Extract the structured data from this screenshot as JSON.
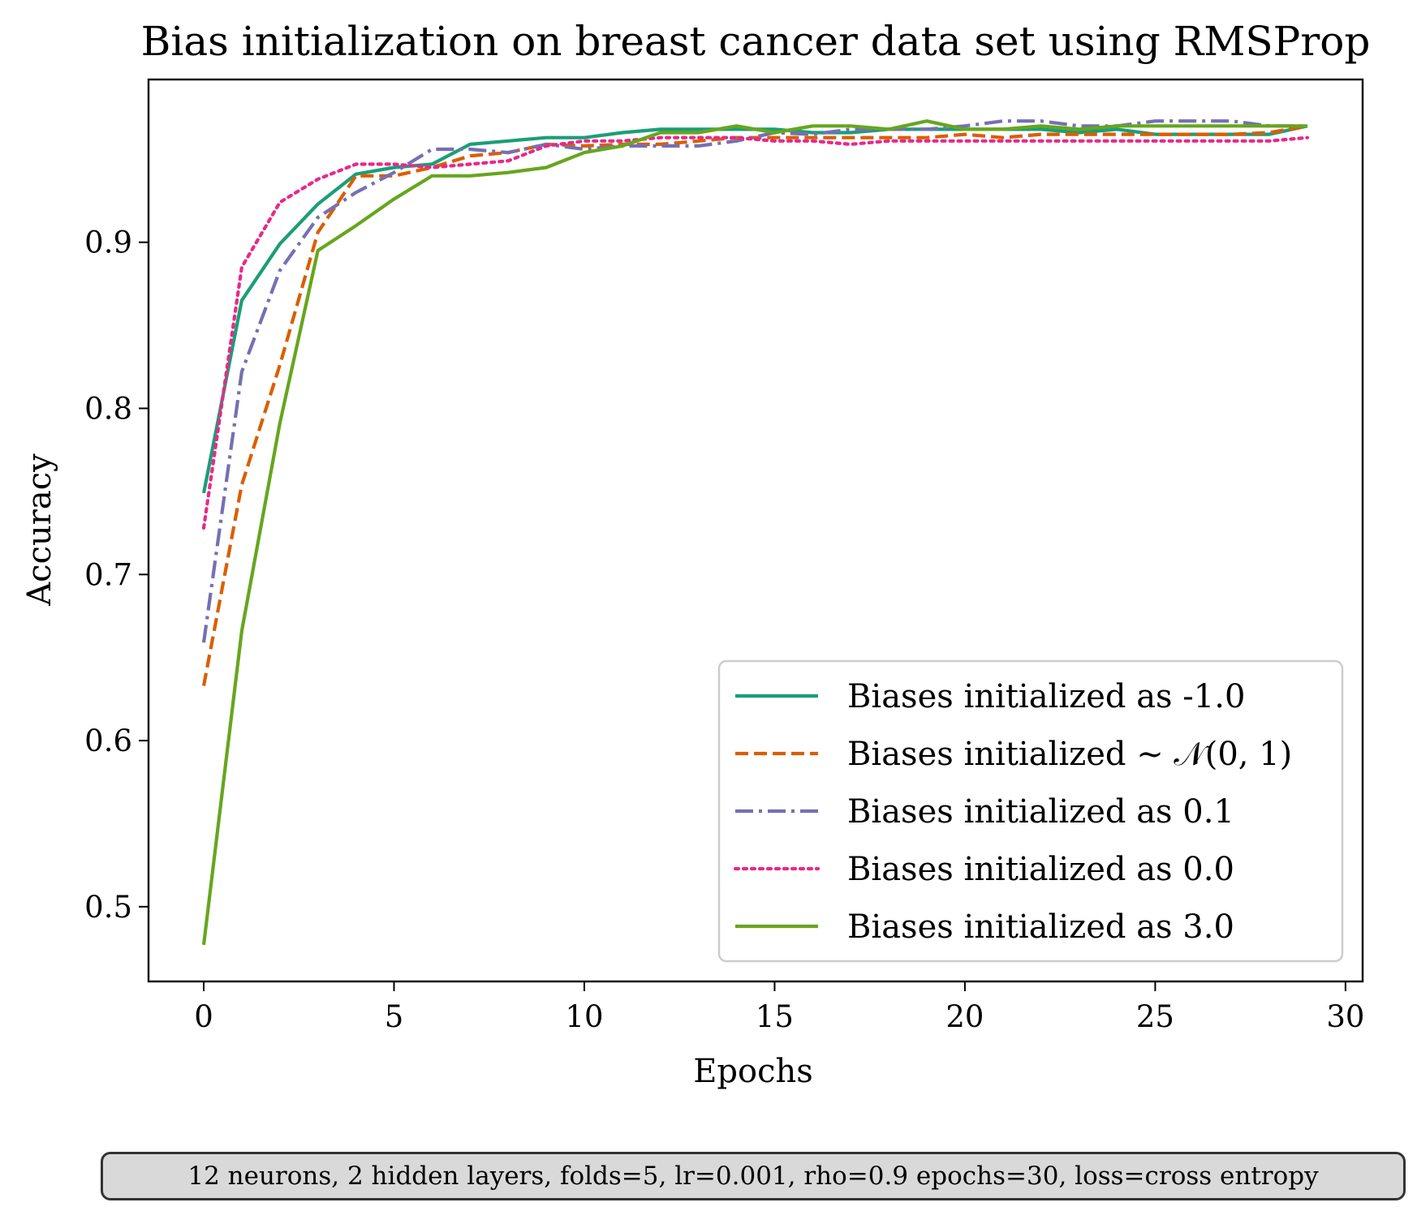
{
  "chart_data": {
    "type": "line",
    "title": "Bias initialization on breast cancer data set using RMSProp",
    "xlabel": "Epochs",
    "ylabel": "Accuracy",
    "xlim": [
      -1.45,
      30.45
    ],
    "ylim": [
      0.455,
      0.998
    ],
    "xticks": [
      0,
      5,
      10,
      15,
      20,
      25,
      30
    ],
    "xtick_labels": [
      "0",
      "5",
      "10",
      "15",
      "20",
      "25",
      "30"
    ],
    "yticks": [
      0.5,
      0.6,
      0.7,
      0.8,
      0.9
    ],
    "ytick_labels": [
      "0.5",
      "0.6",
      "0.7",
      "0.8",
      "0.9"
    ],
    "grid": false,
    "legend_position": "lower-right",
    "x": [
      0,
      1,
      2,
      3,
      4,
      5,
      6,
      7,
      8,
      9,
      10,
      11,
      12,
      13,
      14,
      15,
      16,
      17,
      18,
      19,
      20,
      21,
      22,
      23,
      24,
      25,
      26,
      27,
      28,
      29
    ],
    "series": [
      {
        "name": "Biases initialized as -1.0",
        "color": "#1b9e77",
        "dash": "solid",
        "values": [
          0.749,
          0.865,
          0.899,
          0.923,
          0.941,
          0.945,
          0.947,
          0.959,
          0.961,
          0.963,
          0.963,
          0.966,
          0.968,
          0.968,
          0.968,
          0.968,
          0.966,
          0.966,
          0.968,
          0.968,
          0.968,
          0.968,
          0.968,
          0.966,
          0.968,
          0.965,
          0.965,
          0.965,
          0.965,
          0.97
        ]
      },
      {
        "name": "Biases initialized ∼",
        "name_math": "𝒩(0, 1)",
        "color": "#d95f02",
        "dash": "dashed",
        "values": [
          0.633,
          0.754,
          0.826,
          0.906,
          0.94,
          0.94,
          0.945,
          0.952,
          0.954,
          0.959,
          0.958,
          0.959,
          0.959,
          0.961,
          0.963,
          0.963,
          0.963,
          0.963,
          0.963,
          0.963,
          0.965,
          0.963,
          0.965,
          0.965,
          0.965,
          0.965,
          0.965,
          0.965,
          0.966,
          0.97
        ]
      },
      {
        "name": "Biases initialized as 0.1",
        "color": "#7570b3",
        "dash": "dashdot",
        "values": [
          0.659,
          0.822,
          0.883,
          0.915,
          0.93,
          0.942,
          0.956,
          0.956,
          0.954,
          0.959,
          0.956,
          0.958,
          0.958,
          0.958,
          0.961,
          0.966,
          0.965,
          0.968,
          0.968,
          0.968,
          0.97,
          0.973,
          0.973,
          0.97,
          0.97,
          0.973,
          0.973,
          0.973,
          0.97,
          0.97
        ]
      },
      {
        "name": "Biases initialized as 0.0",
        "color": "#e7298a",
        "dash": "dotted",
        "values": [
          0.728,
          0.885,
          0.924,
          0.938,
          0.947,
          0.947,
          0.945,
          0.947,
          0.949,
          0.958,
          0.961,
          0.961,
          0.963,
          0.963,
          0.963,
          0.961,
          0.961,
          0.959,
          0.961,
          0.961,
          0.961,
          0.961,
          0.961,
          0.961,
          0.961,
          0.961,
          0.961,
          0.961,
          0.961,
          0.963
        ]
      },
      {
        "name": "Biases initialized as 3.0",
        "color": "#66a61e",
        "dash": "solid",
        "values": [
          0.477,
          0.666,
          0.791,
          0.895,
          0.91,
          0.926,
          0.94,
          0.94,
          0.942,
          0.945,
          0.954,
          0.958,
          0.966,
          0.966,
          0.97,
          0.966,
          0.97,
          0.97,
          0.968,
          0.973,
          0.968,
          0.968,
          0.97,
          0.968,
          0.97,
          0.97,
          0.97,
          0.97,
          0.97,
          0.97
        ]
      }
    ]
  },
  "footnote": "12 neurons, 2 hidden layers, folds=5, lr=0.001, rho=0.9 epochs=30, loss=cross entropy"
}
